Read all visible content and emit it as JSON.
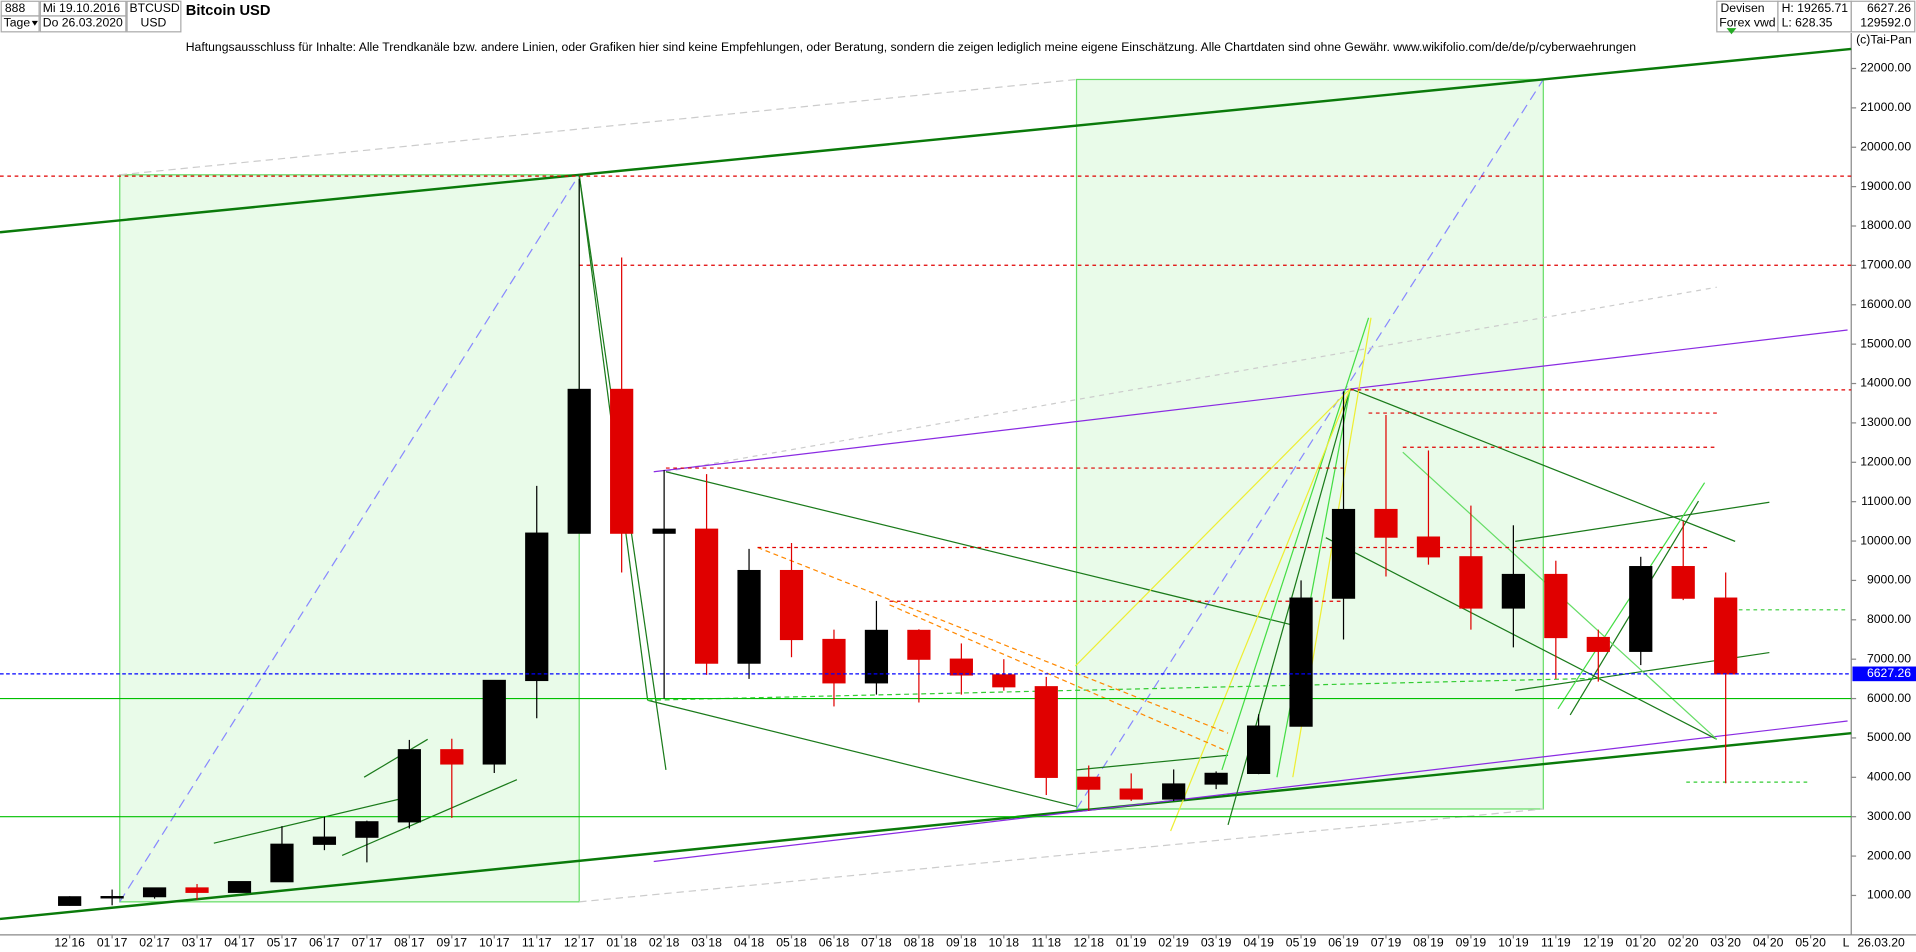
{
  "header": {
    "code": "888",
    "period": "Tage",
    "date_from": "Mi 19.10.2016",
    "date_to": "Do 26.03.2020",
    "symbol": "BTCUSD",
    "currency": "USD",
    "name": "Bitcoin USD",
    "market": "Devisen",
    "source": "Forex vwd",
    "high": "H: 19265.71",
    "low": "L: 628.35",
    "last": "6627.26",
    "volume": "129592.0",
    "disclaimer": "Haftungsausschluss für Inhalte: Alle Trendkanäle bzw. andere Linien, oder Grafiken hier sind keine Empfehlungen, oder Beratung, sondern die zeigen lediglich meine eigene Einschätzung. Alle Chartdaten sind ohne Gewähr.  www.wikifolio.com/de/de/p/cyberwaehrungen",
    "copyright": "(c)Tai-Pan",
    "footer_date": "26.03.20",
    "footer_scale": "L"
  },
  "chart_data": {
    "type": "candlestick",
    "x": [
      "12 16",
      "01 17",
      "02 17",
      "03 17",
      "04 17",
      "05 17",
      "06 17",
      "07 17",
      "08 17",
      "09 17",
      "10 17",
      "11 17",
      "12 17",
      "01 18",
      "02 18",
      "03 18",
      "04 18",
      "05 18",
      "06 18",
      "07 18",
      "08 18",
      "09 18",
      "10 18",
      "11 18",
      "12 18",
      "01 19",
      "02 19",
      "03 19",
      "04 19",
      "05 19",
      "06 19",
      "07 19",
      "08 19",
      "09 19",
      "10 19",
      "11 19",
      "12 19",
      "01 20",
      "02 20",
      "03 20",
      "04 20",
      "05 20"
    ],
    "open": [
      750,
      965,
      970,
      1190,
      1080,
      1350,
      2300,
      2480,
      2870,
      4700,
      4340,
      6460,
      10200,
      13850,
      10200,
      10300,
      6900,
      9250,
      7500,
      6400,
      7730,
      7000,
      6600,
      6300,
      4000,
      3700,
      3450,
      3830,
      4100,
      5300,
      8550,
      10800,
      10100,
      9600,
      8300,
      9150,
      7550,
      7200,
      9350,
      8550,
      null,
      null
    ],
    "high": [
      980,
      1150,
      1200,
      1290,
      1350,
      2760,
      3000,
      2900,
      4950,
      4980,
      6470,
      11400,
      19200,
      17200,
      11800,
      11700,
      9800,
      9950,
      7750,
      8480,
      7760,
      7400,
      7000,
      6550,
      4300,
      4100,
      4200,
      4150,
      5600,
      9000,
      13800,
      13200,
      12300,
      10900,
      10400,
      9500,
      7750,
      9600,
      10500,
      9200,
      null,
      null
    ],
    "low": [
      740,
      750,
      920,
      890,
      1080,
      1350,
      2150,
      1840,
      2700,
      2970,
      4110,
      5500,
      10200,
      9200,
      6000,
      6600,
      6500,
      7050,
      5800,
      6100,
      5900,
      6100,
      6200,
      3550,
      3150,
      3400,
      3400,
      3700,
      4080,
      5300,
      7500,
      9100,
      9400,
      7750,
      7300,
      6500,
      6430,
      6850,
      8500,
      3850,
      null,
      null
    ],
    "close": [
      965,
      970,
      1190,
      1080,
      1350,
      2300,
      2480,
      2870,
      4700,
      4340,
      6460,
      10200,
      13850,
      10200,
      10300,
      6900,
      9250,
      7500,
      6400,
      7730,
      7000,
      6600,
      6300,
      4000,
      3700,
      3450,
      3830,
      4100,
      5300,
      8550,
      10800,
      10100,
      9600,
      8300,
      9150,
      7550,
      7200,
      9350,
      8550,
      6627.26,
      null,
      null
    ],
    "up_color": "#000000",
    "down_color": "#e00000",
    "ylim": [
      0,
      22900
    ],
    "yticks": [
      {
        "value": 1000,
        "label": "1000.00"
      },
      {
        "value": 2000,
        "label": "2000.00"
      },
      {
        "value": 3000,
        "label": "3000.00"
      },
      {
        "value": 4000,
        "label": "4000.00"
      },
      {
        "value": 5000,
        "label": "5000.00"
      },
      {
        "value": 6000,
        "label": "6000.00"
      },
      {
        "value": 7000,
        "label": "7000.00"
      },
      {
        "value": 8000,
        "label": "8000.00"
      },
      {
        "value": 9000,
        "label": "9000.00"
      },
      {
        "value": 10000,
        "label": "10000.00"
      },
      {
        "value": 11000,
        "label": "11000.00"
      },
      {
        "value": 12000,
        "label": "12000.00"
      },
      {
        "value": 13000,
        "label": "13000.00"
      },
      {
        "value": 14000,
        "label": "14000.00"
      },
      {
        "value": 15000,
        "label": "15000.00"
      },
      {
        "value": 16000,
        "label": "16000.00"
      },
      {
        "value": 17000,
        "label": "17000.00"
      },
      {
        "value": 18000,
        "label": "18000.00"
      },
      {
        "value": 19000,
        "label": "19000.00"
      },
      {
        "value": 20000,
        "label": "20000.00"
      },
      {
        "value": 21000,
        "label": "21000.00"
      },
      {
        "value": 22000,
        "label": "22000.00"
      }
    ],
    "last_price": 6627.26,
    "last_price_color": "#0000ff",
    "reference_lines": [
      {
        "value": 19265.71,
        "color": "#e00000"
      },
      {
        "value": 6000,
        "color": "#00c000"
      },
      {
        "value": 3000,
        "color": "#00c000"
      }
    ]
  }
}
